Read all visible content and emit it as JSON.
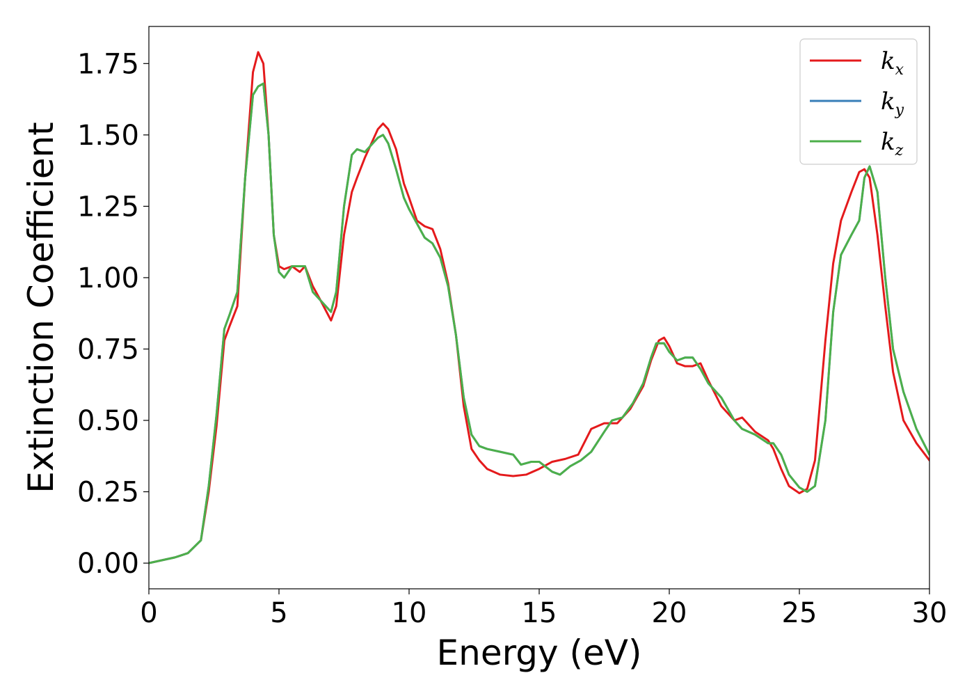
{
  "chart_data": {
    "type": "line",
    "xlabel": "Energy (eV)",
    "ylabel": "Extinction Coefficient",
    "xlim": [
      0,
      30
    ],
    "ylim": [
      -0.09,
      1.88
    ],
    "xticks": [
      0,
      5,
      10,
      15,
      20,
      25,
      30
    ],
    "xtick_labels": [
      "0",
      "5",
      "10",
      "15",
      "20",
      "25",
      "30"
    ],
    "yticks": [
      0,
      0.25,
      0.5,
      0.75,
      1.0,
      1.25,
      1.5,
      1.75
    ],
    "ytick_labels": [
      "0.00",
      "0.25",
      "0.50",
      "0.75",
      "1.00",
      "1.25",
      "1.50",
      "1.75"
    ],
    "grid": false,
    "legend_position": "top-right",
    "series": [
      {
        "name": "k",
        "subscript": "x",
        "color": "#e41a1c",
        "x": [
          0,
          1,
          1.5,
          2,
          2.3,
          2.6,
          2.9,
          3.1,
          3.4,
          3.7,
          4.0,
          4.2,
          4.4,
          4.6,
          4.8,
          5.0,
          5.2,
          5.5,
          5.8,
          6.0,
          6.3,
          6.6,
          7.0,
          7.2,
          7.5,
          7.8,
          8.0,
          8.3,
          8.6,
          8.8,
          9.0,
          9.2,
          9.5,
          9.8,
          10.0,
          10.3,
          10.6,
          10.9,
          11.2,
          11.5,
          11.8,
          12.1,
          12.4,
          12.7,
          13.0,
          13.5,
          14.0,
          14.5,
          15.0,
          15.5,
          16.0,
          16.5,
          17.0,
          17.5,
          18.0,
          18.5,
          19.0,
          19.3,
          19.6,
          19.8,
          20.0,
          20.3,
          20.6,
          20.9,
          21.2,
          21.5,
          22.0,
          22.5,
          22.8,
          23.3,
          23.8,
          24.0,
          24.3,
          24.6,
          25.0,
          25.3,
          25.6,
          26.0,
          26.3,
          26.6,
          27.0,
          27.3,
          27.5,
          27.7,
          28.0,
          28.3,
          28.6,
          29.0,
          29.5,
          30.0
        ],
        "y": [
          0.0,
          0.02,
          0.035,
          0.08,
          0.25,
          0.48,
          0.78,
          0.83,
          0.9,
          1.35,
          1.72,
          1.79,
          1.75,
          1.5,
          1.15,
          1.04,
          1.03,
          1.04,
          1.02,
          1.04,
          0.97,
          0.92,
          0.85,
          0.9,
          1.15,
          1.3,
          1.35,
          1.42,
          1.48,
          1.52,
          1.54,
          1.52,
          1.45,
          1.33,
          1.28,
          1.2,
          1.18,
          1.17,
          1.1,
          0.98,
          0.8,
          0.55,
          0.4,
          0.36,
          0.33,
          0.31,
          0.305,
          0.31,
          0.33,
          0.355,
          0.365,
          0.38,
          0.47,
          0.49,
          0.49,
          0.54,
          0.62,
          0.71,
          0.78,
          0.79,
          0.76,
          0.7,
          0.69,
          0.69,
          0.7,
          0.64,
          0.55,
          0.5,
          0.51,
          0.46,
          0.43,
          0.4,
          0.33,
          0.27,
          0.245,
          0.26,
          0.36,
          0.78,
          1.05,
          1.2,
          1.3,
          1.37,
          1.38,
          1.35,
          1.15,
          0.9,
          0.67,
          0.5,
          0.42,
          0.36
        ]
      },
      {
        "name": "k",
        "subscript": "y",
        "color": "#377eb8",
        "x": [
          0,
          1,
          1.5,
          2,
          2.3,
          2.6,
          2.9,
          3.1,
          3.4,
          3.7,
          4.0,
          4.2,
          4.4,
          4.6,
          4.8,
          5.0,
          5.2,
          5.5,
          5.8,
          6.0,
          6.3,
          6.6,
          7.0,
          7.2,
          7.5,
          7.8,
          8.0,
          8.3,
          8.6,
          8.8,
          9.0,
          9.2,
          9.5,
          9.8,
          10.0,
          10.3,
          10.6,
          10.9,
          11.2,
          11.5,
          11.8,
          12.1,
          12.4,
          12.7,
          13.0,
          13.5,
          14.0,
          14.3,
          14.7,
          15.0,
          15.5,
          15.8,
          16.2,
          16.6,
          17.0,
          17.5,
          17.8,
          18.2,
          18.6,
          19.0,
          19.3,
          19.5,
          19.8,
          20.0,
          20.3,
          20.6,
          20.9,
          21.2,
          21.5,
          22.0,
          22.5,
          22.8,
          23.3,
          23.8,
          24.0,
          24.3,
          24.6,
          25.0,
          25.3,
          25.6,
          26.0,
          26.3,
          26.6,
          27.0,
          27.3,
          27.5,
          27.7,
          28.0,
          28.3,
          28.6,
          29.0,
          29.5,
          30.0
        ],
        "y": [
          0.0,
          0.02,
          0.035,
          0.08,
          0.27,
          0.52,
          0.82,
          0.87,
          0.95,
          1.35,
          1.64,
          1.67,
          1.68,
          1.5,
          1.15,
          1.02,
          1.0,
          1.04,
          1.04,
          1.04,
          0.95,
          0.92,
          0.88,
          0.95,
          1.25,
          1.43,
          1.45,
          1.44,
          1.47,
          1.49,
          1.5,
          1.47,
          1.38,
          1.28,
          1.24,
          1.19,
          1.14,
          1.12,
          1.07,
          0.97,
          0.8,
          0.58,
          0.45,
          0.41,
          0.4,
          0.39,
          0.38,
          0.345,
          0.355,
          0.355,
          0.32,
          0.31,
          0.34,
          0.36,
          0.39,
          0.46,
          0.5,
          0.51,
          0.56,
          0.63,
          0.72,
          0.77,
          0.77,
          0.74,
          0.71,
          0.72,
          0.72,
          0.68,
          0.63,
          0.58,
          0.5,
          0.47,
          0.45,
          0.42,
          0.42,
          0.38,
          0.31,
          0.265,
          0.25,
          0.27,
          0.5,
          0.88,
          1.08,
          1.15,
          1.2,
          1.35,
          1.39,
          1.3,
          1.0,
          0.75,
          0.6,
          0.47,
          0.38
        ]
      },
      {
        "name": "k",
        "subscript": "z",
        "color": "#4daf4a",
        "x": [
          0,
          1,
          1.5,
          2,
          2.3,
          2.6,
          2.9,
          3.1,
          3.4,
          3.7,
          4.0,
          4.2,
          4.4,
          4.6,
          4.8,
          5.0,
          5.2,
          5.5,
          5.8,
          6.0,
          6.3,
          6.6,
          7.0,
          7.2,
          7.5,
          7.8,
          8.0,
          8.3,
          8.6,
          8.8,
          9.0,
          9.2,
          9.5,
          9.8,
          10.0,
          10.3,
          10.6,
          10.9,
          11.2,
          11.5,
          11.8,
          12.1,
          12.4,
          12.7,
          13.0,
          13.5,
          14.0,
          14.3,
          14.7,
          15.0,
          15.5,
          15.8,
          16.2,
          16.6,
          17.0,
          17.5,
          17.8,
          18.2,
          18.6,
          19.0,
          19.3,
          19.5,
          19.8,
          20.0,
          20.3,
          20.6,
          20.9,
          21.2,
          21.5,
          22.0,
          22.5,
          22.8,
          23.3,
          23.8,
          24.0,
          24.3,
          24.6,
          25.0,
          25.3,
          25.6,
          26.0,
          26.3,
          26.6,
          27.0,
          27.3,
          27.5,
          27.7,
          28.0,
          28.3,
          28.6,
          29.0,
          29.5,
          30.0
        ],
        "y": [
          0.0,
          0.02,
          0.035,
          0.08,
          0.27,
          0.52,
          0.82,
          0.87,
          0.95,
          1.35,
          1.64,
          1.67,
          1.68,
          1.5,
          1.15,
          1.02,
          1.0,
          1.04,
          1.04,
          1.04,
          0.95,
          0.92,
          0.88,
          0.95,
          1.25,
          1.43,
          1.45,
          1.44,
          1.47,
          1.49,
          1.5,
          1.47,
          1.38,
          1.28,
          1.24,
          1.19,
          1.14,
          1.12,
          1.07,
          0.97,
          0.8,
          0.58,
          0.45,
          0.41,
          0.4,
          0.39,
          0.38,
          0.345,
          0.355,
          0.355,
          0.32,
          0.31,
          0.34,
          0.36,
          0.39,
          0.46,
          0.5,
          0.51,
          0.56,
          0.63,
          0.72,
          0.77,
          0.77,
          0.74,
          0.71,
          0.72,
          0.72,
          0.68,
          0.63,
          0.58,
          0.5,
          0.47,
          0.45,
          0.42,
          0.42,
          0.38,
          0.31,
          0.265,
          0.25,
          0.27,
          0.5,
          0.88,
          1.08,
          1.15,
          1.2,
          1.35,
          1.39,
          1.3,
          1.0,
          0.75,
          0.6,
          0.47,
          0.38
        ]
      }
    ]
  }
}
